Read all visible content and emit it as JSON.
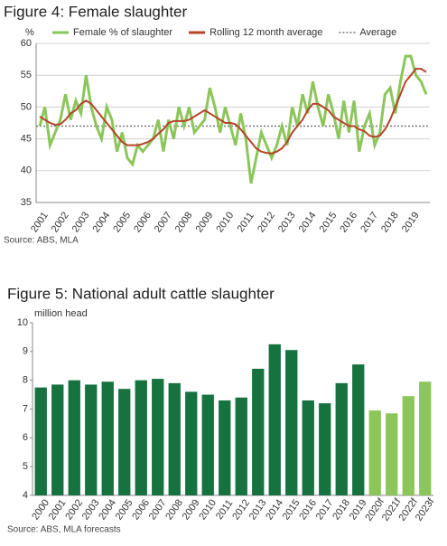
{
  "chart_data": [
    {
      "type": "line",
      "title": "Figure 4: Female slaughter",
      "ylabel": "%",
      "source": "Source: ABS, MLA",
      "categories": [
        "2001",
        null,
        null,
        null,
        "2002",
        null,
        null,
        null,
        "2003",
        null,
        null,
        null,
        "2004",
        null,
        null,
        null,
        "2005",
        null,
        null,
        null,
        "2006",
        null,
        null,
        null,
        "2007",
        null,
        null,
        null,
        "2008",
        null,
        null,
        null,
        "2009",
        null,
        null,
        null,
        "2010",
        null,
        null,
        null,
        "2011",
        null,
        null,
        null,
        "2012",
        null,
        null,
        null,
        "2013",
        null,
        null,
        null,
        "2014",
        null,
        null,
        null,
        "2015",
        null,
        null,
        null,
        "2016",
        null,
        null,
        null,
        "2017",
        null,
        null,
        null,
        "2018",
        null,
        null,
        null,
        "2019",
        null,
        null,
        null
      ],
      "series": [
        {
          "name": "Female % of slaughter",
          "color": "#8cc65a",
          "width": 3,
          "values": [
            47,
            50,
            44,
            46,
            48,
            52,
            48,
            51,
            49,
            55,
            50,
            47,
            45,
            50,
            48,
            43,
            46,
            42,
            41,
            44,
            43,
            44,
            45,
            48,
            43,
            48,
            45,
            50,
            47,
            50,
            46,
            47,
            48,
            53,
            50,
            46,
            50,
            47,
            44,
            49,
            45,
            38,
            42,
            46,
            44,
            42,
            44,
            47,
            44,
            50,
            47,
            52,
            49,
            54,
            50,
            47,
            52,
            49,
            45,
            51,
            46,
            51,
            43,
            47,
            49,
            44,
            46,
            52,
            53,
            49,
            54,
            58,
            58,
            55,
            54,
            52
          ]
        },
        {
          "name": "Rolling 12 month average",
          "color": "#b5442a",
          "width": 2,
          "values": [
            48.5,
            48,
            47.5,
            47.2,
            47.3,
            48,
            49,
            49.5,
            50.5,
            51,
            50.5,
            49.5,
            48.5,
            47.5,
            46.5,
            45.5,
            44.5,
            44,
            44,
            44,
            44.2,
            44.5,
            45,
            45.8,
            46.5,
            47.5,
            47.8,
            47.8,
            47.8,
            48,
            48.5,
            49,
            49.5,
            49,
            48.5,
            48,
            47.5,
            47.5,
            47.3,
            46.5,
            45.5,
            44.5,
            43.5,
            43,
            42.8,
            42.7,
            43,
            43.5,
            44.5,
            46,
            47,
            48,
            49.5,
            50.5,
            50.5,
            50,
            49.5,
            48.5,
            48,
            47.5,
            47,
            47,
            46.5,
            46.2,
            45.5,
            45.3,
            45.5,
            46.5,
            48,
            50,
            52,
            54,
            55,
            56,
            56,
            55.5
          ]
        }
      ],
      "reference_line": {
        "name": "Average",
        "value": 47,
        "color": "#777777"
      },
      "ylim": [
        35,
        60
      ],
      "yticks": [
        35,
        40,
        45,
        50,
        55,
        60
      ],
      "grid": true
    },
    {
      "type": "bar",
      "title": "Figure 5: National adult cattle slaughter",
      "ylabel": "million head",
      "source": "Source: ABS, MLA forecasts",
      "categories": [
        "2000",
        "2001",
        "2002",
        "2003",
        "2004",
        "2005",
        "2006",
        "2007",
        "2008",
        "2009",
        "2010",
        "2011",
        "2012",
        "2013",
        "2014",
        "2015",
        "2016",
        "2017",
        "2018",
        "2019",
        "2020f",
        "2021f",
        "2022f",
        "2023f"
      ],
      "values": [
        7.75,
        7.85,
        8.0,
        7.85,
        7.95,
        7.7,
        8.0,
        8.05,
        7.9,
        7.6,
        7.5,
        7.3,
        7.4,
        8.4,
        9.25,
        9.05,
        7.3,
        7.2,
        7.9,
        8.55,
        6.95,
        6.85,
        7.45,
        7.95
      ],
      "colors": [
        "#16723f",
        "#16723f",
        "#16723f",
        "#16723f",
        "#16723f",
        "#16723f",
        "#16723f",
        "#16723f",
        "#16723f",
        "#16723f",
        "#16723f",
        "#16723f",
        "#16723f",
        "#16723f",
        "#16723f",
        "#16723f",
        "#16723f",
        "#16723f",
        "#16723f",
        "#16723f",
        "#8cc65a",
        "#8cc65a",
        "#8cc65a",
        "#8cc65a"
      ],
      "ylim": [
        4,
        10
      ],
      "yticks": [
        4,
        5,
        6,
        7,
        8,
        9,
        10
      ],
      "grid": false
    }
  ]
}
